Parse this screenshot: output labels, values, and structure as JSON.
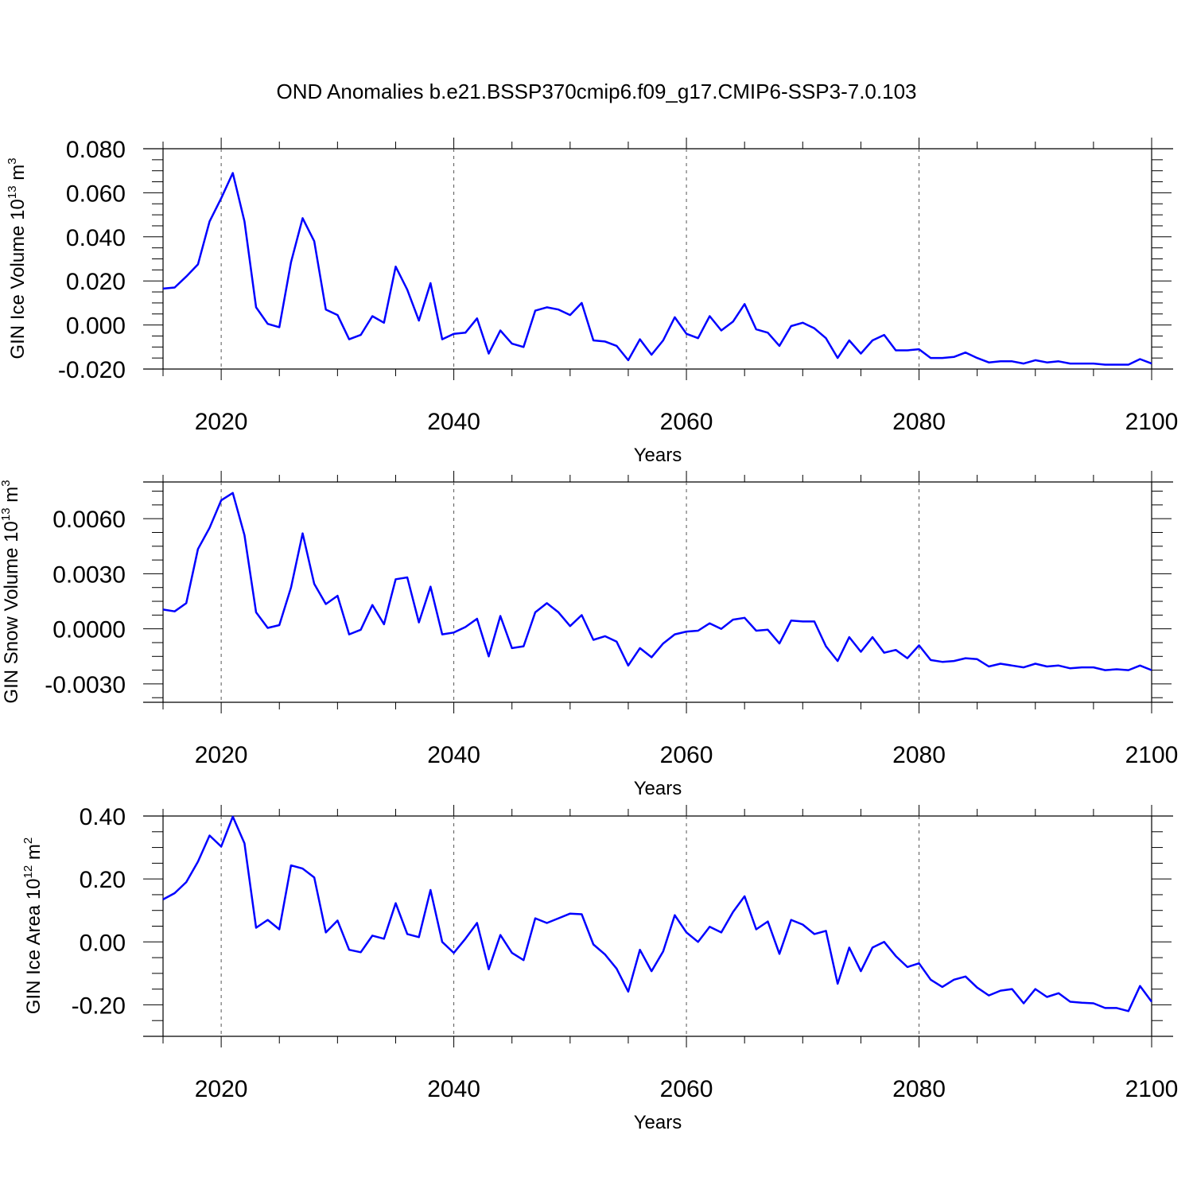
{
  "title": "OND Anomalies b.e21.BSSP370cmip6.f09_g17.CMIP6-SSP3-7.0.103",
  "line_color": "#0000ff",
  "chart_data": [
    {
      "type": "line",
      "ylabel": "GIN Ice Volume 10",
      "ylabel_exp": "13",
      "ylabel_unit": "m",
      "ylabel_unit_exp": "3",
      "xlabel": "Years",
      "xlim": [
        2015,
        2100
      ],
      "ylim": [
        -0.02,
        0.08
      ],
      "yticks": [
        -0.02,
        0.0,
        0.02,
        0.04,
        0.06,
        0.08
      ],
      "ytick_labels": [
        "-0.020",
        "0.000",
        "0.020",
        "0.040",
        "0.060",
        "0.080"
      ],
      "xticks": [
        2020,
        2040,
        2060,
        2080,
        2100
      ],
      "xtick_labels": [
        "2020",
        "2040",
        "2060",
        "2080",
        "2100"
      ],
      "x": [
        2015,
        2016,
        2017,
        2018,
        2019,
        2020,
        2021,
        2022,
        2023,
        2024,
        2025,
        2026,
        2027,
        2028,
        2029,
        2030,
        2031,
        2032,
        2033,
        2034,
        2035,
        2036,
        2037,
        2038,
        2039,
        2040,
        2041,
        2042,
        2043,
        2044,
        2045,
        2046,
        2047,
        2048,
        2049,
        2050,
        2051,
        2052,
        2053,
        2054,
        2055,
        2056,
        2057,
        2058,
        2059,
        2060,
        2061,
        2062,
        2063,
        2064,
        2065,
        2066,
        2067,
        2068,
        2069,
        2070,
        2071,
        2072,
        2073,
        2074,
        2075,
        2076,
        2077,
        2078,
        2079,
        2080,
        2081,
        2082,
        2083,
        2084,
        2085,
        2086,
        2087,
        2088,
        2089,
        2090,
        2091,
        2092,
        2093,
        2094,
        2095,
        2096,
        2097,
        2098,
        2099,
        2100
      ],
      "y": [
        0.0165,
        0.017,
        0.022,
        0.0275,
        0.047,
        0.0575,
        0.069,
        0.047,
        0.008,
        0.0005,
        -0.001,
        0.0285,
        0.0485,
        0.038,
        0.007,
        0.0045,
        -0.0065,
        -0.0045,
        0.004,
        0.001,
        0.0265,
        0.016,
        0.002,
        0.019,
        -0.0065,
        -0.004,
        -0.0035,
        0.003,
        -0.013,
        -0.0025,
        -0.0085,
        -0.01,
        0.0065,
        0.008,
        0.007,
        0.0045,
        0.01,
        -0.007,
        -0.0075,
        -0.0095,
        -0.016,
        -0.0065,
        -0.0135,
        -0.007,
        0.0035,
        -0.004,
        -0.006,
        0.004,
        -0.0025,
        0.0015,
        0.0095,
        -0.002,
        -0.0035,
        -0.0095,
        -0.0005,
        0.001,
        -0.0015,
        -0.006,
        -0.015,
        -0.007,
        -0.013,
        -0.007,
        -0.0045,
        -0.0115,
        -0.0115,
        -0.011,
        -0.015,
        -0.015,
        -0.0145,
        -0.0125,
        -0.015,
        -0.017,
        -0.0165,
        -0.0165,
        -0.0175,
        -0.016,
        -0.017,
        -0.0165,
        -0.0175,
        -0.0175,
        -0.0175,
        -0.018,
        -0.018,
        -0.018,
        -0.0155,
        -0.0175
      ]
    },
    {
      "type": "line",
      "ylabel": "GIN Snow Volume 10",
      "ylabel_exp": "13",
      "ylabel_unit": "m",
      "ylabel_unit_exp": "3",
      "xlabel": "Years",
      "xlim": [
        2015,
        2100
      ],
      "ylim": [
        -0.004,
        0.008
      ],
      "yticks": [
        -0.003,
        0.0,
        0.003,
        0.006
      ],
      "ytick_labels": [
        "-0.0030",
        "0.0000",
        "0.0030",
        "0.0060"
      ],
      "xticks": [
        2020,
        2040,
        2060,
        2080,
        2100
      ],
      "xtick_labels": [
        "2020",
        "2040",
        "2060",
        "2080",
        "2100"
      ],
      "x": [
        2015,
        2016,
        2017,
        2018,
        2019,
        2020,
        2021,
        2022,
        2023,
        2024,
        2025,
        2026,
        2027,
        2028,
        2029,
        2030,
        2031,
        2032,
        2033,
        2034,
        2035,
        2036,
        2037,
        2038,
        2039,
        2040,
        2041,
        2042,
        2043,
        2044,
        2045,
        2046,
        2047,
        2048,
        2049,
        2050,
        2051,
        2052,
        2053,
        2054,
        2055,
        2056,
        2057,
        2058,
        2059,
        2060,
        2061,
        2062,
        2063,
        2064,
        2065,
        2066,
        2067,
        2068,
        2069,
        2070,
        2071,
        2072,
        2073,
        2074,
        2075,
        2076,
        2077,
        2078,
        2079,
        2080,
        2081,
        2082,
        2083,
        2084,
        2085,
        2086,
        2087,
        2088,
        2089,
        2090,
        2091,
        2092,
        2093,
        2094,
        2095,
        2096,
        2097,
        2098,
        2099,
        2100
      ],
      "y": [
        0.00105,
        0.00095,
        0.0014,
        0.00435,
        0.0055,
        0.007,
        0.0074,
        0.0051,
        0.0009,
        5e-05,
        0.0002,
        0.00225,
        0.0052,
        0.00245,
        0.00135,
        0.0018,
        -0.0003,
        -5e-05,
        0.0013,
        0.00025,
        0.0027,
        0.0028,
        0.00035,
        0.0023,
        -0.0003,
        -0.0002,
        0.0001,
        0.00055,
        -0.0015,
        0.0007,
        -0.00105,
        -0.00095,
        0.0009,
        0.0014,
        0.0009,
        0.00015,
        0.00075,
        -0.0006,
        -0.0004,
        -0.0007,
        -0.002,
        -0.00105,
        -0.00155,
        -0.0008,
        -0.0003,
        -0.00015,
        -0.0001,
        0.0003,
        0.0,
        0.0005,
        0.0006,
        -0.0001,
        -5e-05,
        -0.0008,
        0.00045,
        0.0004,
        0.0004,
        -0.00095,
        -0.00175,
        -0.00045,
        -0.00125,
        -0.00045,
        -0.0013,
        -0.00115,
        -0.0016,
        -0.0009,
        -0.0017,
        -0.0018,
        -0.00175,
        -0.0016,
        -0.00165,
        -0.00205,
        -0.0019,
        -0.002,
        -0.0021,
        -0.0019,
        -0.00205,
        -0.002,
        -0.00215,
        -0.0021,
        -0.0021,
        -0.00225,
        -0.0022,
        -0.00225,
        -0.002,
        -0.00225
      ]
    },
    {
      "type": "line",
      "ylabel": "GIN Ice Area 10",
      "ylabel_exp": "12",
      "ylabel_unit": "m",
      "ylabel_unit_exp": "2",
      "xlabel": "Years",
      "xlim": [
        2015,
        2100
      ],
      "ylim": [
        -0.3,
        0.4
      ],
      "yticks": [
        -0.2,
        0.0,
        0.2,
        0.4
      ],
      "ytick_labels": [
        "-0.20",
        "0.00",
        "0.20",
        "0.40"
      ],
      "xticks": [
        2020,
        2040,
        2060,
        2080,
        2100
      ],
      "xtick_labels": [
        "2020",
        "2040",
        "2060",
        "2080",
        "2100"
      ],
      "x": [
        2015,
        2016,
        2017,
        2018,
        2019,
        2020,
        2021,
        2022,
        2023,
        2024,
        2025,
        2026,
        2027,
        2028,
        2029,
        2030,
        2031,
        2032,
        2033,
        2034,
        2035,
        2036,
        2037,
        2038,
        2039,
        2040,
        2041,
        2042,
        2043,
        2044,
        2045,
        2046,
        2047,
        2048,
        2049,
        2050,
        2051,
        2052,
        2053,
        2054,
        2055,
        2056,
        2057,
        2058,
        2059,
        2060,
        2061,
        2062,
        2063,
        2064,
        2065,
        2066,
        2067,
        2068,
        2069,
        2070,
        2071,
        2072,
        2073,
        2074,
        2075,
        2076,
        2077,
        2078,
        2079,
        2080,
        2081,
        2082,
        2083,
        2084,
        2085,
        2086,
        2087,
        2088,
        2089,
        2090,
        2091,
        2092,
        2093,
        2094,
        2095,
        2096,
        2097,
        2098,
        2099,
        2100
      ],
      "y": [
        0.135,
        0.155,
        0.19,
        0.255,
        0.338,
        0.303,
        0.398,
        0.313,
        0.045,
        0.07,
        0.04,
        0.243,
        0.233,
        0.205,
        0.03,
        0.068,
        -0.025,
        -0.033,
        0.02,
        0.01,
        0.123,
        0.025,
        0.015,
        0.165,
        0.0,
        -0.035,
        0.01,
        0.06,
        -0.087,
        0.022,
        -0.035,
        -0.058,
        0.075,
        0.06,
        0.075,
        0.09,
        0.088,
        -0.008,
        -0.04,
        -0.085,
        -0.158,
        -0.025,
        -0.093,
        -0.03,
        0.085,
        0.03,
        0.0,
        0.048,
        0.03,
        0.095,
        0.145,
        0.04,
        0.065,
        -0.038,
        0.07,
        0.055,
        0.025,
        0.035,
        -0.133,
        -0.018,
        -0.093,
        -0.018,
        0.0,
        -0.045,
        -0.08,
        -0.068,
        -0.12,
        -0.143,
        -0.12,
        -0.11,
        -0.145,
        -0.17,
        -0.155,
        -0.15,
        -0.195,
        -0.15,
        -0.175,
        -0.163,
        -0.19,
        -0.193,
        -0.195,
        -0.21,
        -0.21,
        -0.22,
        -0.14,
        -0.19
      ]
    }
  ]
}
